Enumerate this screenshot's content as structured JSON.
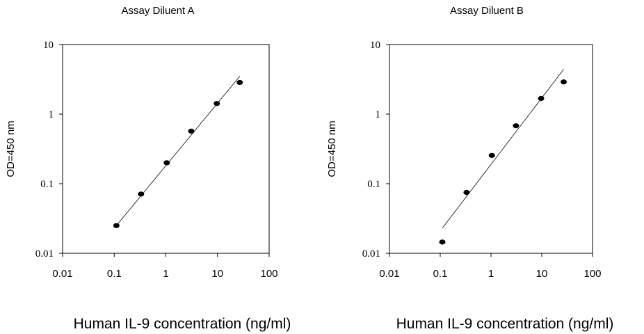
{
  "chart_data": [
    {
      "type": "scatter",
      "title": "Assay Diluent A",
      "xlabel": "Human IL-9 concentration (ng/ml)",
      "ylabel": "OD=450 nm",
      "x_scale": "log",
      "y_scale": "log",
      "xlim": [
        0.01,
        100
      ],
      "ylim": [
        0.01,
        10
      ],
      "x_ticks": [
        "0.01",
        "0.1",
        "1",
        "10",
        "100"
      ],
      "y_ticks": [
        "0.01",
        "0.1",
        "1",
        "10"
      ],
      "grid": false,
      "series": [
        {
          "x": [
            0.11,
            0.33,
            1.04,
            3.1,
            9.7,
            27
          ],
          "y": [
            0.025,
            0.071,
            0.2,
            0.57,
            1.42,
            2.85
          ]
        }
      ],
      "fit_line": {
        "x": [
          0.11,
          27
        ],
        "y": [
          0.025,
          3.5
        ]
      }
    },
    {
      "type": "scatter",
      "title": "Assay Diluent B",
      "xlabel": "Human IL-9 concentration (ng/ml)",
      "ylabel": "OD=450 nm",
      "x_scale": "log",
      "y_scale": "log",
      "xlim": [
        0.01,
        100
      ],
      "ylim": [
        0.01,
        10
      ],
      "x_ticks": [
        "0.01",
        "0.1",
        "1",
        "10",
        "100"
      ],
      "y_ticks": [
        "0.01",
        "0.1",
        "1",
        "10"
      ],
      "grid": false,
      "series": [
        {
          "x": [
            0.11,
            0.33,
            1.04,
            3.1,
            9.7,
            27
          ],
          "y": [
            0.0145,
            0.075,
            0.255,
            0.68,
            1.68,
            2.9
          ]
        }
      ],
      "fit_line": {
        "x": [
          0.11,
          27
        ],
        "y": [
          0.023,
          4.4
        ]
      }
    }
  ]
}
